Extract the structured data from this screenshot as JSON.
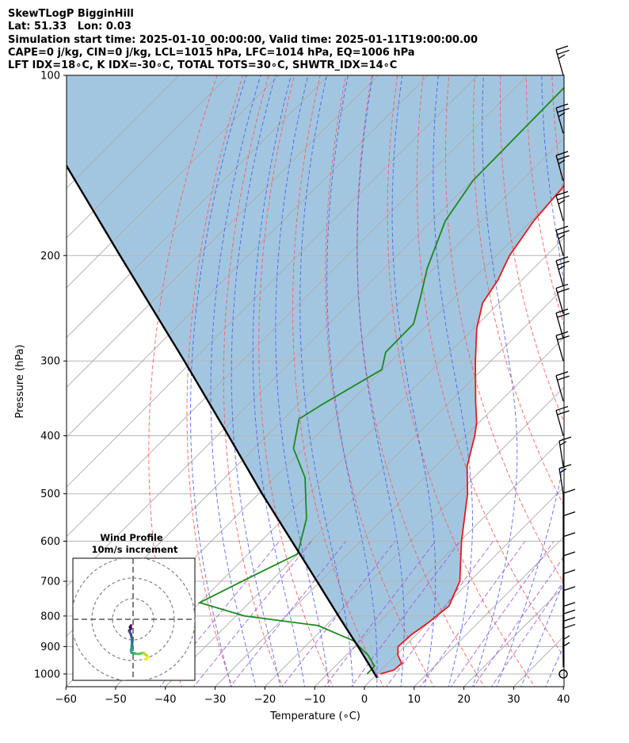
{
  "header": {
    "line1": "SkewTLogP BigginHill",
    "line2": "Lat: 51.33   Lon: 0.03",
    "line3": "Simulation start time: 2025-01-10_00:00:00, Valid time: 2025-01-11T19:00:00.00",
    "line4": "CAPE=0 j/kg, CIN=0 j/kg, LCL=1015 hPa, LFC=1014 hPa, EQ=1006 hPa",
    "line5": "LFT IDX=18∘C, K IDX=-30∘C, TOTAL TOTS=30∘C, SHWTR_IDX=14∘C"
  },
  "inset": {
    "title": "Wind Profile",
    "subtitle": "10m/s increment"
  },
  "chart_data": {
    "type": "line",
    "title": "SkewTLogP BigginHill",
    "xlabel": "Temperature (∘C)",
    "ylabel": "Pressure (hPa)",
    "xlim": [
      -60,
      40
    ],
    "ylim": [
      1050,
      100
    ],
    "y_scale": "log",
    "skew": true,
    "x_ticks": [
      -60,
      -50,
      -40,
      -30,
      -20,
      -10,
      0,
      10,
      20,
      30,
      40
    ],
    "x_tick_labels": [
      "−60",
      "−50",
      "−40",
      "−30",
      "−20",
      "−10",
      "0",
      "10",
      "20",
      "30",
      "40"
    ],
    "y_ticks": [
      1000,
      900,
      800,
      700,
      600,
      500,
      400,
      300,
      200,
      100
    ],
    "grid": true,
    "colors": {
      "temperature": "#e41a1c",
      "dewpoint": "#1a8a1a",
      "parcel": "#000000",
      "cape_fill": "#a3c6e0",
      "dry_adiabat": "#ff5555",
      "moist_adiabat": "#4455ee",
      "mixing_ratio": "#9a4dd6",
      "isotherm": "#aaaaaa"
    },
    "series": [
      {
        "key": "temperature",
        "points": [
          [
            1000,
            0.6
          ],
          [
            985,
            2.6
          ],
          [
            960,
            2.8
          ],
          [
            930,
            0.4
          ],
          [
            900,
            -1.3
          ],
          [
            860,
            -1.0
          ],
          [
            820,
            0.0
          ],
          [
            770,
            0.8
          ],
          [
            700,
            -2.0
          ],
          [
            600,
            -9.7
          ],
          [
            500,
            -18.0
          ],
          [
            450,
            -23.6
          ],
          [
            400,
            -28.2
          ],
          [
            380,
            -30.5
          ],
          [
            350,
            -35.0
          ],
          [
            300,
            -43.1
          ],
          [
            265,
            -49.3
          ],
          [
            240,
            -53.3
          ],
          [
            220,
            -54.8
          ],
          [
            200,
            -57.4
          ],
          [
            175,
            -59.5
          ],
          [
            150,
            -60.6
          ],
          [
            125,
            -62.7
          ],
          [
            100,
            -62.7
          ]
        ]
      },
      {
        "key": "dewpoint",
        "points": [
          [
            1000,
            -2.0
          ],
          [
            970,
            -2.1
          ],
          [
            930,
            -5.6
          ],
          [
            880,
            -11.4
          ],
          [
            830,
            -21.6
          ],
          [
            800,
            -38.3
          ],
          [
            760,
            -50.0
          ],
          [
            690,
            -45.0
          ],
          [
            630,
            -40.1
          ],
          [
            550,
            -45.4
          ],
          [
            470,
            -53.9
          ],
          [
            420,
            -62.1
          ],
          [
            375,
            -66.9
          ],
          [
            355,
            -65.2
          ],
          [
            310,
            -60.2
          ],
          [
            290,
            -62.9
          ],
          [
            260,
            -63.0
          ],
          [
            235,
            -66.9
          ],
          [
            210,
            -71.4
          ],
          [
            175,
            -77.3
          ],
          [
            150,
            -79.8
          ],
          [
            100,
            -80.2
          ]
        ]
      },
      {
        "key": "parcel",
        "points": [
          [
            1015,
            0.8
          ],
          [
            900,
            -9.3
          ],
          [
            800,
            -19.4
          ],
          [
            700,
            -30.7
          ],
          [
            600,
            -43.8
          ],
          [
            500,
            -59.3
          ],
          [
            400,
            -77.7
          ],
          [
            300,
            -101.6
          ],
          [
            200,
            -135.7
          ],
          [
            100,
            -193.5
          ]
        ]
      }
    ],
    "wind_barbs": [
      {
        "p": 1000,
        "speed": 0
      },
      {
        "p": 975,
        "speed": 5
      },
      {
        "p": 950,
        "speed": 5
      },
      {
        "p": 925,
        "speed": 10
      },
      {
        "p": 900,
        "speed": 10
      },
      {
        "p": 875,
        "speed": 10
      },
      {
        "p": 850,
        "speed": 10
      },
      {
        "p": 800,
        "speed": 10
      },
      {
        "p": 750,
        "speed": 10
      },
      {
        "p": 700,
        "speed": 10
      },
      {
        "p": 650,
        "speed": 10
      },
      {
        "p": 600,
        "speed": 10
      },
      {
        "p": 550,
        "speed": 10
      },
      {
        "p": 500,
        "speed": 15
      },
      {
        "p": 450,
        "speed": 15
      },
      {
        "p": 400,
        "speed": 20
      },
      {
        "p": 350,
        "speed": 20
      },
      {
        "p": 300,
        "speed": 20
      },
      {
        "p": 275,
        "speed": 20
      },
      {
        "p": 250,
        "speed": 20
      },
      {
        "p": 225,
        "speed": 25
      },
      {
        "p": 200,
        "speed": 25
      },
      {
        "p": 175,
        "speed": 25
      },
      {
        "p": 150,
        "speed": 25
      },
      {
        "p": 125,
        "speed": 25
      },
      {
        "p": 100,
        "speed": 25
      }
    ],
    "hodograph": {
      "ring_increment": 10,
      "points": [
        [
          -1.0,
          -3.0
        ],
        [
          -1.5,
          -3.8
        ],
        [
          -1.0,
          -4.4
        ],
        [
          -1.4,
          -5.0
        ],
        [
          -1.9,
          -5.5
        ],
        [
          -1.6,
          -6.2
        ],
        [
          -1.0,
          -7.4
        ],
        [
          -0.5,
          -9.8
        ],
        [
          -0.5,
          -12.1
        ],
        [
          -0.7,
          -13.0
        ],
        [
          -0.6,
          -14.0
        ],
        [
          -1.0,
          -14.9
        ],
        [
          -0.8,
          -16.2
        ],
        [
          1.6,
          -16.7
        ],
        [
          3.0,
          -16.8
        ],
        [
          5.0,
          -16.2
        ],
        [
          6.3,
          -17.3
        ],
        [
          7.3,
          -18.3
        ],
        [
          6.5,
          -19.3
        ],
        [
          5.8,
          -19.4
        ]
      ]
    }
  }
}
